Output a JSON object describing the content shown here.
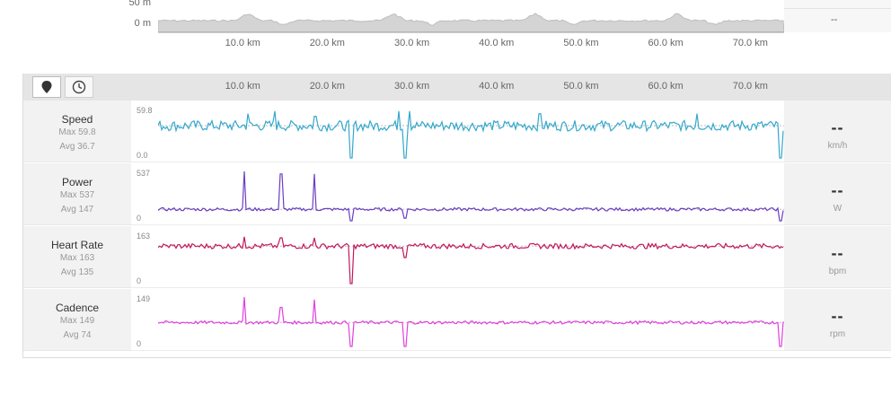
{
  "elevation": {
    "y_labels": [
      "50 m",
      "0 m"
    ],
    "x_ticks": [
      "10.0 km",
      "20.0 km",
      "30.0 km",
      "40.0 km",
      "50.0 km",
      "60.0 km",
      "70.0 km"
    ],
    "right_value": "--",
    "fill_color": "#d4d4d4"
  },
  "toolbar": {
    "map_icon": "map-pin-icon",
    "time_icon": "clock-icon",
    "x_ticks": [
      "10.0 km",
      "20.0 km",
      "30.0 km",
      "40.0 km",
      "50.0 km",
      "60.0 km",
      "70.0 km"
    ]
  },
  "streams": [
    {
      "key": "speed",
      "title": "Speed",
      "max": "Max 59.8",
      "avg": "Avg 36.7",
      "top": "59.8",
      "bottom": "0.0",
      "value": "--",
      "unit": "km/h",
      "color": "#33a8cc"
    },
    {
      "key": "power",
      "title": "Power",
      "max": "Max 537",
      "avg": "Avg 147",
      "top": "537",
      "bottom": "0",
      "value": "--",
      "unit": "W",
      "color": "#6a3ec2"
    },
    {
      "key": "heartrate",
      "title": "Heart Rate",
      "max": "Max 163",
      "avg": "Avg 135",
      "top": "163",
      "bottom": "0",
      "value": "--",
      "unit": "bpm",
      "color": "#c2185b"
    },
    {
      "key": "cadence",
      "title": "Cadence",
      "max": "Max 149",
      "avg": "Avg 74",
      "top": "149",
      "bottom": "0",
      "value": "--",
      "unit": "rpm",
      "color": "#e040e0"
    }
  ]
}
